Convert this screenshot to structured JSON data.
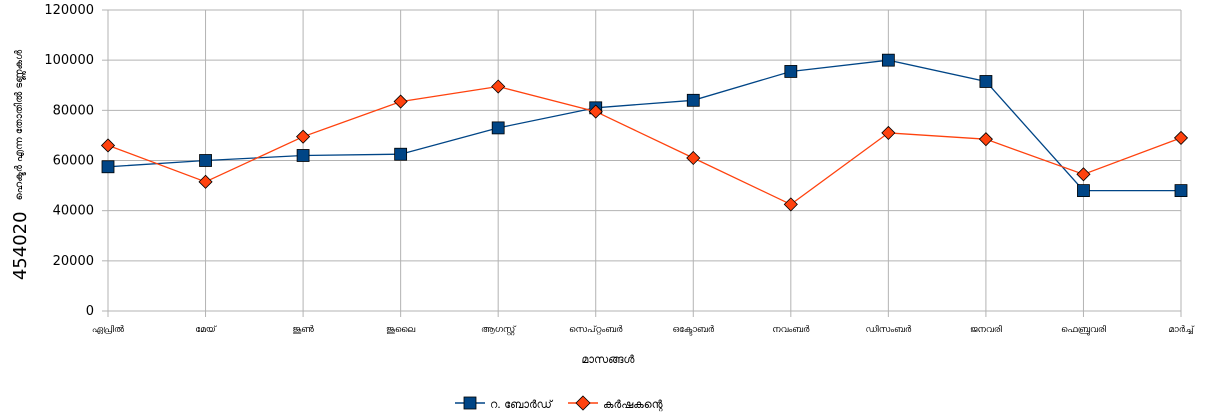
{
  "chart_data": {
    "type": "line",
    "xlabel": "മാസങ്ങൾ",
    "ylabel_prefix": "454020",
    "ylabel_main": "ഹെക്ടർ എന്ന തോതിൽ ടണ്ണുകൾ",
    "ylim": [
      0,
      120000
    ],
    "yticks": [
      0,
      20000,
      40000,
      60000,
      80000,
      100000,
      120000
    ],
    "grid": true,
    "legend_position": "bottom-center",
    "categories": [
      "ഏപ്രിൽ",
      "മേയ്",
      "ജൂൺ",
      "ജൂലൈ",
      "ആഗസ്റ്റ്",
      "സെപ്റ്റംബർ",
      "ഒക്ടോബർ",
      "നവംബർ",
      "ഡിസംബർ",
      "ജനവരി",
      "ഫെബ്രുവരി",
      "മാർച്ച്"
    ],
    "series": [
      {
        "name": "റ. ബോർഡ്",
        "color": "#004586",
        "marker": "square",
        "values": [
          57500,
          60000,
          62000,
          62500,
          73000,
          81000,
          84000,
          95500,
          100000,
          91500,
          48000,
          48000
        ]
      },
      {
        "name": "കർഷകന്റെ",
        "color": "#ff420e",
        "marker": "diamond",
        "values": [
          66000,
          51500,
          69500,
          83500,
          89500,
          79500,
          61000,
          42500,
          71000,
          68500,
          54500,
          69000
        ]
      }
    ]
  }
}
